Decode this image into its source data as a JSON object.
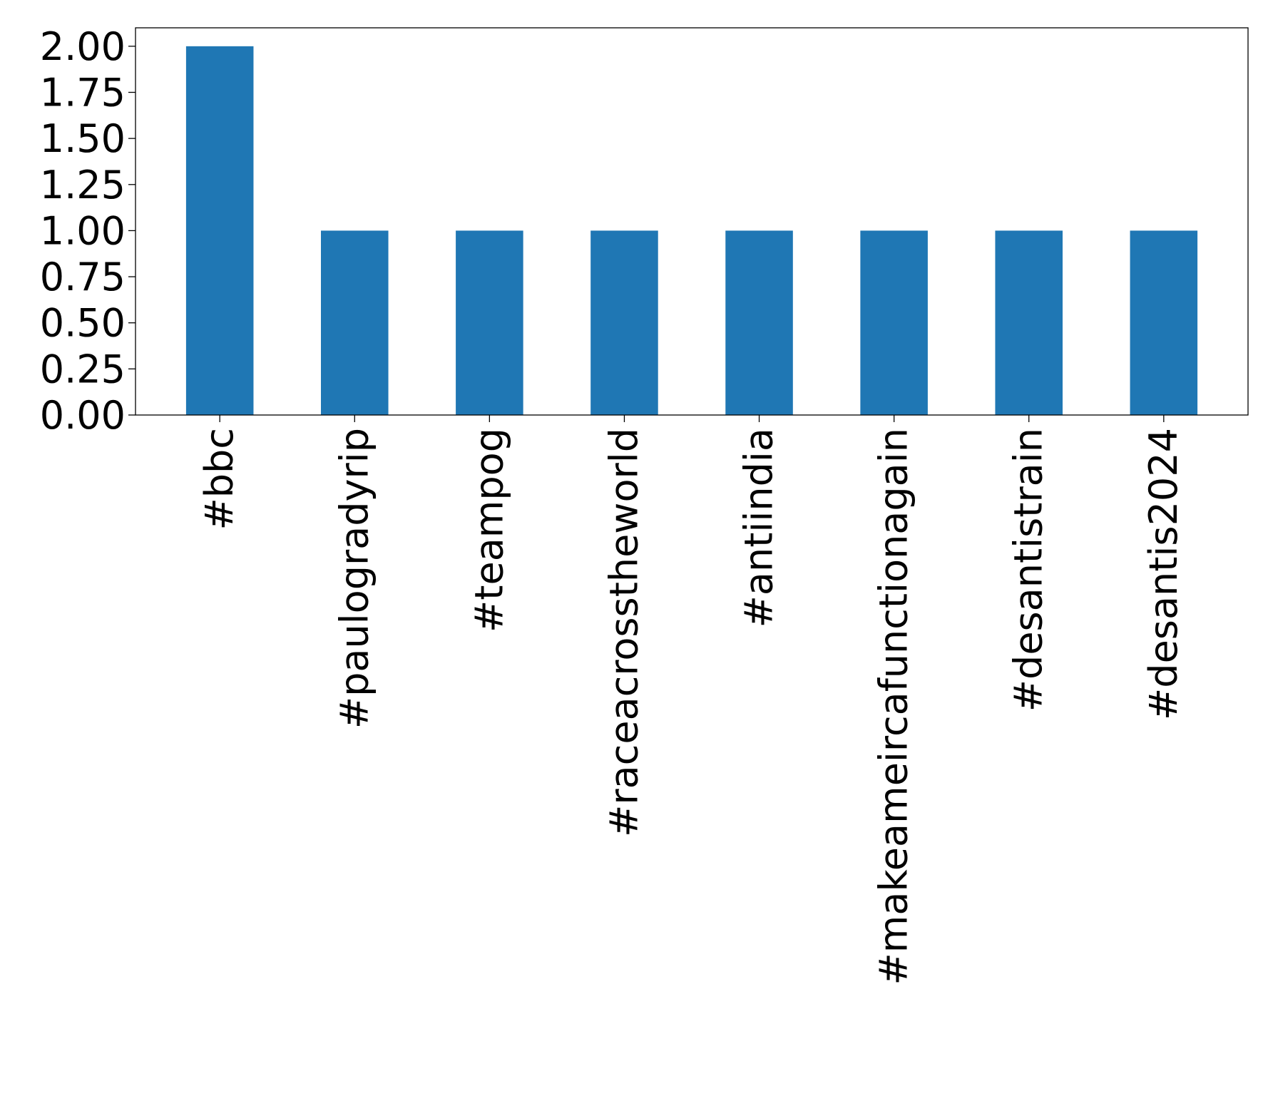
{
  "chart_data": {
    "type": "bar",
    "categories": [
      "#bbc",
      "#paulogradyrip",
      "#teampog",
      "#raceacrosstheworld",
      "#antiindia",
      "#makeameircafunctionagain",
      "#desantistrain",
      "#desantis2024"
    ],
    "values": [
      2,
      1,
      1,
      1,
      1,
      1,
      1,
      1
    ],
    "title": "",
    "xlabel": "",
    "ylabel": "",
    "ylim": [
      0,
      2.1
    ],
    "yticks": [
      "0.00",
      "0.25",
      "0.50",
      "0.75",
      "1.00",
      "1.25",
      "1.50",
      "1.75",
      "2.00"
    ],
    "bar_color": "#1f77b4",
    "grid": false
  }
}
